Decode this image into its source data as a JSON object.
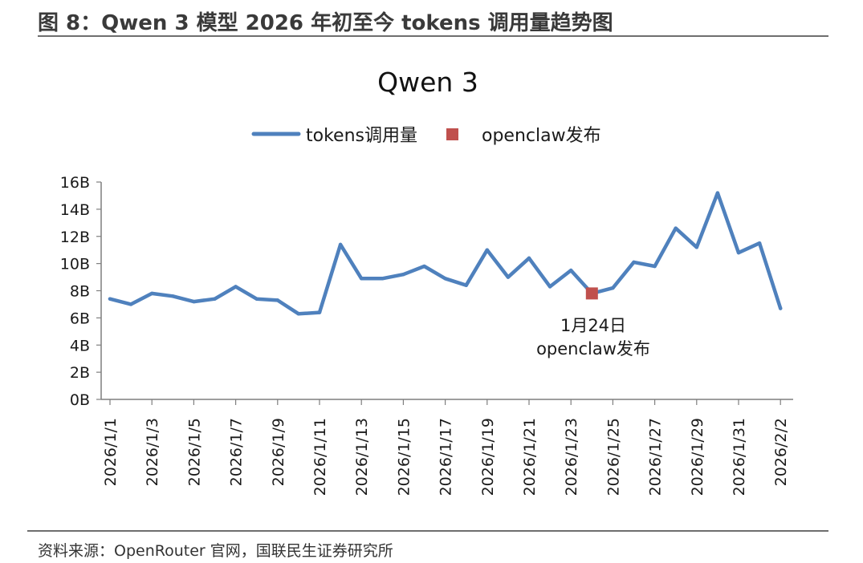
{
  "figure_title": "图 8：Qwen 3 模型 2026 年初至今 tokens 调用量趋势图",
  "source": "资料来源：OpenRouter 官网，国联民生证券研究所",
  "colors": {
    "line": "#4f81bd",
    "marker": "#c0504d",
    "axis": "#7f7f7f",
    "rule": "#6e6e6e"
  },
  "chart_data": {
    "type": "line",
    "title": "Qwen 3",
    "xlabel": "",
    "ylabel": "",
    "ylim": [
      0,
      16
    ],
    "ytick_labels": [
      "0B",
      "2B",
      "4B",
      "6B",
      "8B",
      "10B",
      "12B",
      "14B",
      "16B"
    ],
    "xtick_labels": [
      "2026/1/1",
      "2026/1/3",
      "2026/1/5",
      "2026/1/7",
      "2026/1/9",
      "2026/1/11",
      "2026/1/13",
      "2026/1/15",
      "2026/1/17",
      "2026/1/19",
      "2026/1/21",
      "2026/1/23",
      "2026/1/25",
      "2026/1/27",
      "2026/1/29",
      "2026/1/31",
      "2026/2/2"
    ],
    "x": [
      "2026/1/1",
      "2026/1/2",
      "2026/1/3",
      "2026/1/4",
      "2026/1/5",
      "2026/1/6",
      "2026/1/7",
      "2026/1/8",
      "2026/1/9",
      "2026/1/10",
      "2026/1/11",
      "2026/1/12",
      "2026/1/13",
      "2026/1/14",
      "2026/1/15",
      "2026/1/16",
      "2026/1/17",
      "2026/1/18",
      "2026/1/19",
      "2026/1/20",
      "2026/1/21",
      "2026/1/22",
      "2026/1/23",
      "2026/1/24",
      "2026/1/25",
      "2026/1/26",
      "2026/1/27",
      "2026/1/28",
      "2026/1/29",
      "2026/1/30",
      "2026/1/31",
      "2026/2/1",
      "2026/2/2"
    ],
    "series": [
      {
        "name": "tokens调用量",
        "unit": "B",
        "values": [
          7.4,
          7.0,
          7.8,
          7.6,
          7.2,
          7.4,
          8.3,
          7.4,
          7.3,
          6.3,
          6.4,
          11.4,
          8.9,
          8.9,
          9.2,
          9.8,
          8.9,
          8.4,
          11.0,
          9.0,
          10.4,
          8.3,
          9.5,
          7.8,
          8.2,
          10.1,
          9.8,
          12.6,
          11.2,
          15.2,
          10.8,
          11.5,
          6.7
        ]
      },
      {
        "name": "openclaw发布",
        "kind": "marker",
        "x": "2026/1/24",
        "value": 7.8
      }
    ],
    "annotation": {
      "line1": "1月24日",
      "line2": "openclaw发布"
    },
    "legend_position": "top-center",
    "grid": false
  }
}
